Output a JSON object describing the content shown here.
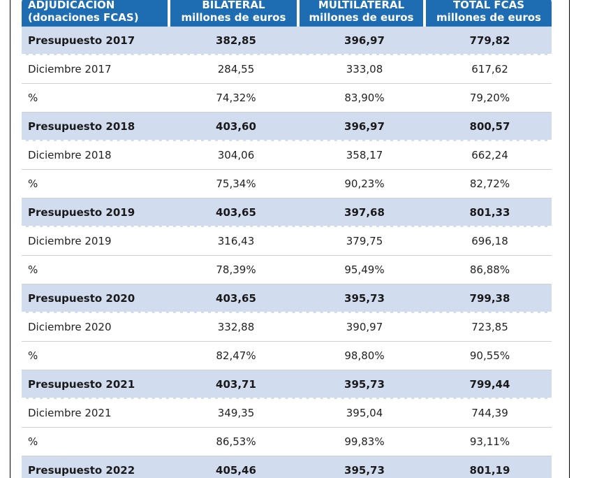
{
  "table": {
    "headers": [
      [
        "ADJUDICACIÓN",
        "(donaciones FCAS)"
      ],
      [
        "BILATERAL",
        "millones de euros"
      ],
      [
        "MULTILATERAL",
        "millones de euros"
      ],
      [
        "TOTAL FCAS",
        "millones de euros"
      ]
    ],
    "rows": [
      {
        "kind": "budget",
        "cells": [
          "Presupuesto 2017",
          "382,85",
          "396,97",
          "779,82"
        ]
      },
      {
        "kind": "plain",
        "cells": [
          "Diciembre 2017",
          "284,55",
          "333,08",
          "617,62"
        ]
      },
      {
        "kind": "plain",
        "cells": [
          "%",
          "74,32%",
          "83,90%",
          "79,20%"
        ]
      },
      {
        "kind": "budget",
        "cells": [
          "Presupuesto 2018",
          "403,60",
          "396,97",
          "800,57"
        ]
      },
      {
        "kind": "plain",
        "cells": [
          "Diciembre 2018",
          "304,06",
          "358,17",
          "662,24"
        ]
      },
      {
        "kind": "plain",
        "cells": [
          "%",
          "75,34%",
          "90,23%",
          "82,72%"
        ]
      },
      {
        "kind": "budget",
        "cells": [
          "Presupuesto 2019",
          "403,65",
          "397,68",
          "801,33"
        ]
      },
      {
        "kind": "plain",
        "cells": [
          "Diciembre 2019",
          "316,43",
          "379,75",
          "696,18"
        ]
      },
      {
        "kind": "plain",
        "cells": [
          "%",
          "78,39%",
          "95,49%",
          "86,88%"
        ]
      },
      {
        "kind": "budget",
        "cells": [
          "Presupuesto 2020",
          "403,65",
          "395,73",
          "799,38"
        ]
      },
      {
        "kind": "plain",
        "cells": [
          "Diciembre 2020",
          "332,88",
          "390,97",
          "723,85"
        ]
      },
      {
        "kind": "plain",
        "cells": [
          "%",
          "82,47%",
          "98,80%",
          "90,55%"
        ]
      },
      {
        "kind": "budget",
        "cells": [
          "Presupuesto 2021",
          "403,71",
          "395,73",
          "799,44"
        ]
      },
      {
        "kind": "plain",
        "cells": [
          "Diciembre 2021",
          "349,35",
          "395,04",
          "744,39"
        ]
      },
      {
        "kind": "plain",
        "cells": [
          "%",
          "86,53%",
          "99,83%",
          "93,11%"
        ]
      },
      {
        "kind": "budget",
        "cells": [
          "Presupuesto 2022",
          "405,46",
          "395,73",
          "801,19"
        ]
      }
    ]
  },
  "colors": {
    "header_bg": "#1e6db3",
    "budget_row_bg": "#d2dcef",
    "plain_row_bg": "#ffffff"
  }
}
